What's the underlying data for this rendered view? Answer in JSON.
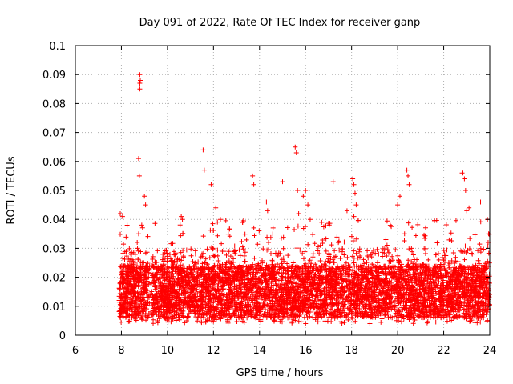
{
  "chart_data": {
    "type": "scatter",
    "title": "Day 091 of 2022, Rate Of TEC Index for receiver ganp",
    "xlabel": "GPS time / hours",
    "ylabel": "ROTI / TECUs",
    "xlim": [
      6,
      24
    ],
    "ylim": [
      0,
      0.1
    ],
    "x_ticks": [
      6,
      8,
      10,
      12,
      14,
      16,
      18,
      20,
      22,
      24
    ],
    "x_tick_labels": [
      "6",
      "8",
      "10",
      "12",
      "14",
      "16",
      "18",
      "20",
      "22",
      "24"
    ],
    "y_ticks": [
      0,
      0.01,
      0.02,
      0.03,
      0.04,
      0.05,
      0.06,
      0.07,
      0.08,
      0.09,
      0.1
    ],
    "y_tick_labels": [
      "0",
      "0.01",
      "0.02",
      "0.03",
      "0.04",
      "0.05",
      "0.06",
      "0.07",
      "0.08",
      "0.09",
      "0.1"
    ],
    "grid": true,
    "marker": "+",
    "color": "#ff0000",
    "series": [
      {
        "name": "ROTI",
        "x": [
          7.9,
          7.95,
          8.0,
          8.05,
          8.1,
          8.15,
          8.2,
          8.3,
          8.4,
          8.5,
          8.6,
          8.7,
          8.75,
          8.8,
          8.85,
          8.9,
          9.0,
          9.1,
          9.2,
          7.95,
          8.05,
          8.25,
          8.8,
          8.8,
          8.8,
          8.82,
          8.75,
          8.78,
          9.05,
          9.0,
          9.5,
          9.6,
          9.8,
          10.0,
          10.2,
          10.4,
          10.5,
          10.7,
          10.9,
          11.0,
          11.2,
          11.4,
          11.5,
          11.6,
          11.8,
          12.0,
          12.2,
          12.4,
          10.6,
          10.65,
          11.55,
          11.6,
          11.9,
          12.1,
          12.3,
          12.6,
          12.8,
          13.0,
          13.2,
          13.4,
          13.6,
          13.8,
          14.0,
          14.2,
          14.4,
          14.6,
          14.8,
          15.0,
          15.2,
          15.4,
          15.6,
          15.8,
          13.7,
          13.75,
          14.3,
          14.35,
          15.0,
          15.55,
          15.6,
          15.65,
          15.7,
          15.9,
          16.0,
          16.1,
          16.2,
          16.3,
          16.5,
          16.7,
          16.9,
          17.1,
          17.3,
          17.5,
          17.7,
          17.9,
          18.0,
          18.1,
          18.2,
          18.4,
          18.6,
          18.8,
          19.0,
          16.7,
          17.2,
          17.8,
          18.05,
          18.1,
          18.15,
          18.2,
          18.1,
          19.2,
          19.4,
          19.6,
          19.8,
          20.0,
          20.2,
          20.4,
          20.6,
          20.8,
          21.0,
          21.2,
          21.4,
          21.6,
          21.8,
          20.0,
          20.1,
          20.4,
          20.45,
          20.5,
          20.3,
          20.6,
          22.0,
          22.2,
          22.4,
          22.6,
          22.8,
          23.0,
          23.2,
          23.4,
          23.6,
          23.8,
          24.0,
          22.8,
          22.9,
          22.95,
          23.0,
          23.1,
          23.6,
          23.9,
          23.95
        ],
        "y": [
          0.012,
          0.016,
          0.014,
          0.02,
          0.011,
          0.024,
          0.013,
          0.018,
          0.01,
          0.022,
          0.015,
          0.03,
          0.035,
          0.019,
          0.012,
          0.025,
          0.016,
          0.02,
          0.013,
          0.042,
          0.041,
          0.038,
          0.087,
          0.09,
          0.085,
          0.088,
          0.061,
          0.055,
          0.045,
          0.048,
          0.011,
          0.015,
          0.02,
          0.013,
          0.017,
          0.012,
          0.022,
          0.016,
          0.019,
          0.012,
          0.025,
          0.015,
          0.018,
          0.013,
          0.021,
          0.014,
          0.02,
          0.016,
          0.041,
          0.04,
          0.064,
          0.057,
          0.052,
          0.044,
          0.04,
          0.012,
          0.016,
          0.011,
          0.02,
          0.014,
          0.018,
          0.012,
          0.015,
          0.019,
          0.013,
          0.017,
          0.012,
          0.02,
          0.014,
          0.018,
          0.022,
          0.015,
          0.055,
          0.052,
          0.046,
          0.043,
          0.053,
          0.065,
          0.063,
          0.05,
          0.042,
          0.048,
          0.05,
          0.045,
          0.04,
          0.012,
          0.018,
          0.014,
          0.02,
          0.013,
          0.017,
          0.022,
          0.015,
          0.019,
          0.014,
          0.025,
          0.018,
          0.013,
          0.02,
          0.016,
          0.014,
          0.039,
          0.053,
          0.043,
          0.054,
          0.052,
          0.049,
          0.045,
          0.041,
          0.012,
          0.018,
          0.014,
          0.02,
          0.013,
          0.017,
          0.022,
          0.015,
          0.019,
          0.012,
          0.016,
          0.013,
          0.018,
          0.014,
          0.045,
          0.048,
          0.057,
          0.055,
          0.052,
          0.035,
          0.03,
          0.012,
          0.016,
          0.013,
          0.019,
          0.015,
          0.018,
          0.012,
          0.016,
          0.02,
          0.014,
          0.018,
          0.056,
          0.054,
          0.05,
          0.043,
          0.044,
          0.046,
          0.04,
          0.035
        ]
      }
    ],
    "points_drawn": 6000
  }
}
